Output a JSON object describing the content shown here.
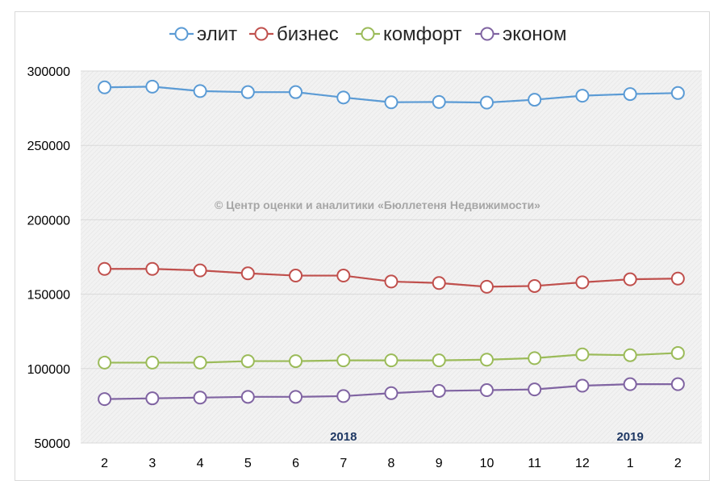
{
  "chart_data": {
    "type": "line",
    "x": [
      "2",
      "3",
      "4",
      "5",
      "6",
      "7",
      "8",
      "9",
      "10",
      "11",
      "12",
      "1",
      "2"
    ],
    "ylim": [
      50000,
      300000
    ],
    "yticks": [
      50000,
      100000,
      150000,
      200000,
      250000,
      300000
    ],
    "ytick_labels": [
      "50000",
      "100000",
      "150000",
      "200000",
      "250000",
      "300000"
    ],
    "grid": true,
    "legend_position": "top",
    "series": [
      {
        "name": "элит",
        "color": "#5b9bd5",
        "values": [
          289000,
          289500,
          286500,
          285800,
          285800,
          282200,
          279000,
          279200,
          278800,
          280700,
          283400,
          284500,
          285200
        ]
      },
      {
        "name": "бизнес",
        "color": "#c0504d",
        "values": [
          167000,
          167000,
          166000,
          164000,
          162500,
          162500,
          158500,
          157500,
          155000,
          155500,
          158000,
          160000,
          160500
        ]
      },
      {
        "name": "комфорт",
        "color": "#9bbb59",
        "values": [
          104000,
          104000,
          104000,
          105000,
          105000,
          105500,
          105500,
          105500,
          106000,
          107000,
          109500,
          109000,
          110500
        ]
      },
      {
        "name": "эконом",
        "color": "#8064a2",
        "values": [
          79500,
          80000,
          80500,
          81000,
          81000,
          81500,
          83500,
          85000,
          85500,
          86000,
          88500,
          89500,
          89500
        ]
      }
    ],
    "annotations": [
      {
        "text": "2018",
        "at_index": 5
      },
      {
        "text": "2019",
        "at_index": 11
      }
    ],
    "watermark": "© Центр оценки и аналитики «Бюллетеня Недвижимости»"
  }
}
